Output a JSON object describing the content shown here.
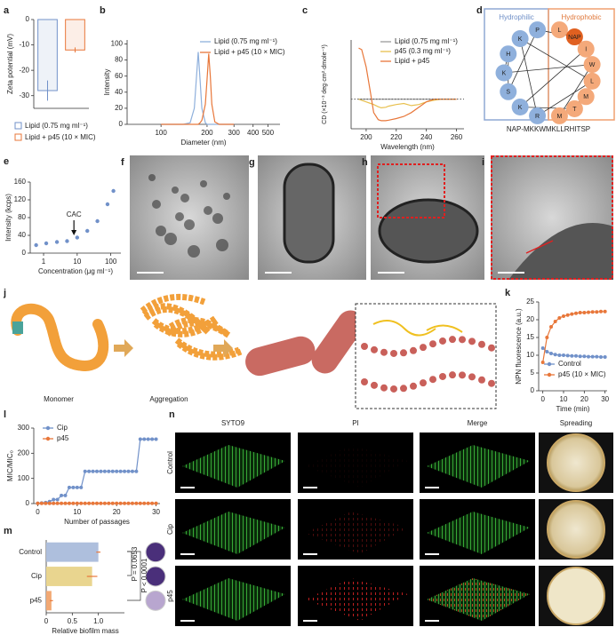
{
  "chart_data": [
    {
      "label": "a",
      "type": "bar",
      "categories": [
        "Lipid (0.75 mg ml⁻¹)",
        "Lipid + p45 (10 × MIC)"
      ],
      "values": [
        -28,
        -12
      ],
      "errors": [
        4,
        1
      ],
      "colors": [
        "#7191c9",
        "#e8773a"
      ],
      "ylabel": "Zeta potential (mV)",
      "ylim": [
        -35,
        0
      ],
      "yticks": [
        -30,
        -20,
        -10,
        0
      ],
      "legend": true
    },
    {
      "label": "b",
      "type": "line",
      "xlog": true,
      "x": [
        100,
        140,
        155,
        165,
        170,
        175,
        180,
        185,
        195,
        200,
        205,
        210,
        215,
        225,
        240,
        300
      ],
      "series": [
        {
          "name": "Lipid (0.75 mg ml⁻¹)",
          "color": "#8fb0dc",
          "values": [
            0,
            0,
            2,
            20,
            55,
            90,
            55,
            20,
            2,
            0,
            0,
            0,
            0,
            0,
            0,
            0
          ]
        },
        {
          "name": "Lipid + p45 (10 × MIC)",
          "color": "#e8773a",
          "values": [
            0,
            0,
            0,
            0,
            0,
            0,
            2,
            5,
            25,
            55,
            88,
            60,
            25,
            3,
            0,
            0
          ]
        }
      ],
      "xlabel": "Diameter (nm)",
      "ylabel": "Intensity",
      "xlim": [
        60,
        600
      ],
      "xticks": [
        100,
        200,
        300,
        400,
        500
      ],
      "ylim": [
        0,
        105
      ],
      "yticks": [
        0,
        20,
        40,
        60,
        80,
        100
      ],
      "legend": true
    },
    {
      "label": "c",
      "type": "line",
      "x": [
        195,
        197,
        200,
        203,
        205,
        208,
        210,
        213,
        215,
        220,
        225,
        230,
        235,
        240,
        245,
        250,
        255,
        260
      ],
      "series": [
        {
          "name": "Lipid (0.75 mg ml⁻¹)",
          "color": "#9a9a9a",
          "values": [
            0,
            0,
            0,
            0,
            0,
            0,
            0,
            0,
            0,
            0,
            0,
            0,
            0,
            0,
            0,
            0,
            0,
            0
          ]
        },
        {
          "name": "p45 (0.3 mg ml⁻¹)",
          "color": "#e8c04f",
          "values": [
            0,
            -2,
            -5,
            -8,
            -10,
            -14,
            -16,
            -15,
            -13,
            -10,
            -8,
            -12,
            -10,
            -5,
            -2,
            0,
            0,
            0
          ]
        },
        {
          "name": "Lipid + p45",
          "color": "#e8773a",
          "values": [
            95,
            92,
            60,
            10,
            -25,
            -38,
            -40,
            -40,
            -39,
            -36,
            -32,
            -25,
            -15,
            -5,
            0,
            0,
            0,
            0
          ]
        }
      ],
      "xlabel": "Wavelength (nm)",
      "ylabel": "CD (×10⁻³ deg·cm²·dmole⁻¹)",
      "xlim": [
        190,
        265
      ],
      "xticks": [
        200,
        220,
        240,
        260
      ],
      "ylim": [
        -55,
        110
      ],
      "zero_line": true,
      "legend": true
    },
    {
      "label": "e",
      "type": "scatter",
      "xlog": true,
      "x": [
        0.6,
        1.2,
        2.5,
        5,
        10,
        20,
        40,
        80,
        120
      ],
      "values": [
        18,
        22,
        25,
        27,
        35,
        50,
        72,
        110,
        140
      ],
      "color": "#7191c9",
      "xlabel": "Concentration (μg ml⁻¹)",
      "ylabel": "Intensity (kcps)",
      "xlim": [
        0.4,
        200
      ],
      "xticks": [
        1,
        10,
        100
      ],
      "ylim": [
        0,
        160
      ],
      "yticks": [
        0,
        40,
        80,
        120,
        160
      ],
      "annotation": "CAC",
      "annotation_x": 8
    },
    {
      "label": "k",
      "type": "line",
      "markers": true,
      "x": [
        0,
        2,
        4,
        6,
        8,
        10,
        12,
        14,
        16,
        18,
        20,
        22,
        24,
        26,
        28,
        30
      ],
      "series": [
        {
          "name": "Control",
          "color": "#7191c9",
          "values": [
            12,
            11,
            10.5,
            10.2,
            10,
            10,
            9.9,
            9.8,
            9.8,
            9.7,
            9.7,
            9.6,
            9.6,
            9.6,
            9.5,
            9.5
          ]
        },
        {
          "name": "p45 (10 × MIC)",
          "color": "#e8773a",
          "values": [
            8,
            15,
            18,
            19.5,
            20.5,
            21,
            21.3,
            21.6,
            21.8,
            22,
            22,
            22.1,
            22.2,
            22.2,
            22.3,
            22.3
          ]
        }
      ],
      "xlabel": "Time (min)",
      "ylabel": "NPN fluorescence (a.u.)",
      "xlim": [
        -2,
        31
      ],
      "xticks": [
        0,
        10,
        20,
        30
      ],
      "ylim": [
        0,
        25
      ],
      "yticks": [
        0,
        5,
        10,
        15,
        20,
        25
      ],
      "legend": true
    },
    {
      "label": "l",
      "type": "line",
      "markers": true,
      "x": [
        0,
        1,
        2,
        3,
        4,
        5,
        6,
        7,
        8,
        9,
        10,
        11,
        12,
        13,
        14,
        15,
        16,
        17,
        18,
        19,
        20,
        21,
        22,
        23,
        24,
        25,
        26,
        27,
        28,
        29,
        30
      ],
      "series": [
        {
          "name": "Cip",
          "color": "#7191c9",
          "values": [
            1,
            2,
            4,
            8,
            16,
            16,
            32,
            32,
            64,
            64,
            64,
            64,
            128,
            128,
            128,
            128,
            128,
            128,
            128,
            128,
            128,
            128,
            128,
            128,
            128,
            128,
            256,
            256,
            256,
            256,
            256
          ]
        },
        {
          "name": "p45",
          "color": "#e8773a",
          "values": [
            1,
            1,
            1,
            1,
            1,
            1,
            1,
            1,
            1,
            1,
            1,
            1,
            1,
            1,
            1,
            1,
            1,
            1,
            1,
            1,
            1,
            1,
            1,
            1,
            1,
            1,
            1,
            1,
            1,
            1,
            1
          ]
        }
      ],
      "xlabel": "Number of passages",
      "ylabel": "MIC/MIC₀",
      "xlim": [
        -1,
        31
      ],
      "xticks": [
        0,
        10,
        20,
        30
      ],
      "ylim": [
        0,
        300
      ],
      "yticks": [
        0,
        100,
        200,
        300
      ],
      "legend": true
    },
    {
      "label": "m",
      "type": "barh",
      "categories": [
        "Control",
        "Cip",
        "p45"
      ],
      "values": [
        1.0,
        0.88,
        0.1
      ],
      "errors": [
        0.04,
        0.1,
        0.03
      ],
      "colors": [
        "#aebfdd",
        "#e9d58f",
        "#f2a873"
      ],
      "xlabel": "Relative biofilm mass",
      "xlim": [
        0,
        1.5
      ],
      "xticks": [
        0,
        0.5,
        {
          "value": 1,
          "label": "1.0"
        }
      ],
      "annotations": [
        "P = 0.0653",
        "P < 0.0001"
      ]
    }
  ],
  "wheel": {
    "label": "d",
    "hydrophilic": "Hydrophilic",
    "hydrophobic": "Hydrophobic",
    "sequence": "NAP-MKKWMKLLRHITSP",
    "hydrophilic_residues": [
      "P",
      "K",
      "H",
      "K",
      "S",
      "K",
      "R"
    ],
    "hydrophobic_residues": [
      "L",
      "NAP",
      "I",
      "W",
      "L",
      "M",
      "T",
      "M"
    ]
  },
  "micrographs": [
    {
      "label": "f"
    },
    {
      "label": "g"
    },
    {
      "label": "h"
    },
    {
      "label": "i"
    }
  ],
  "schematic": {
    "label": "j",
    "steps": [
      "Monomer",
      "Aggregation"
    ]
  },
  "imaging": {
    "label": "n",
    "columns": [
      "SYTO9",
      "PI",
      "Merge",
      "Spreading"
    ],
    "rows": [
      "Control",
      "Cip",
      "p45"
    ]
  }
}
